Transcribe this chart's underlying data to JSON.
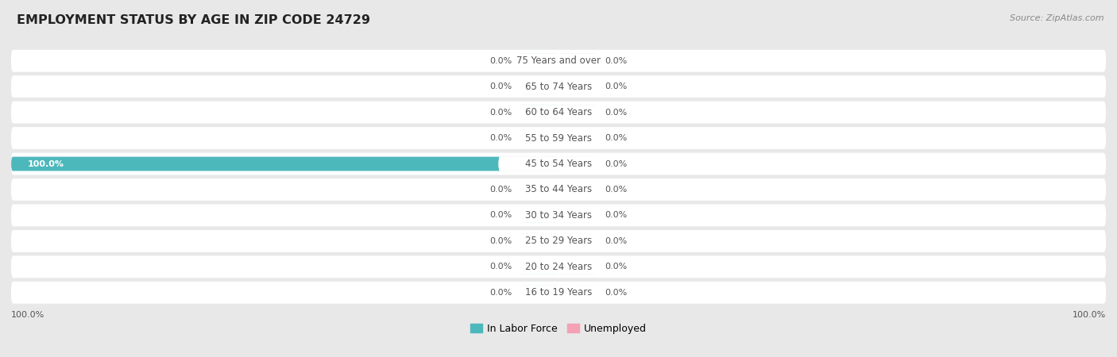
{
  "title": "EMPLOYMENT STATUS BY AGE IN ZIP CODE 24729",
  "source": "Source: ZipAtlas.com",
  "age_groups": [
    "16 to 19 Years",
    "20 to 24 Years",
    "25 to 29 Years",
    "30 to 34 Years",
    "35 to 44 Years",
    "45 to 54 Years",
    "55 to 59 Years",
    "60 to 64 Years",
    "65 to 74 Years",
    "75 Years and over"
  ],
  "in_labor_force": [
    0.0,
    0.0,
    0.0,
    0.0,
    0.0,
    100.0,
    0.0,
    0.0,
    0.0,
    0.0
  ],
  "unemployed": [
    0.0,
    0.0,
    0.0,
    0.0,
    0.0,
    0.0,
    0.0,
    0.0,
    0.0,
    0.0
  ],
  "labor_force_color": "#4db8bc",
  "unemployed_color": "#f4a0b5",
  "row_bg_color": "#ffffff",
  "page_bg_color": "#e8e8e8",
  "text_color_dark": "#555555",
  "text_color_light": "#ffffff",
  "axis_label_left": "100.0%",
  "axis_label_right": "100.0%",
  "xlim": 100.0,
  "stub_size": 7.0,
  "legend_labor_label": "In Labor Force",
  "legend_unemployed_label": "Unemployed",
  "label_fontsize": 8.0,
  "age_fontsize": 8.5,
  "title_fontsize": 11.5
}
